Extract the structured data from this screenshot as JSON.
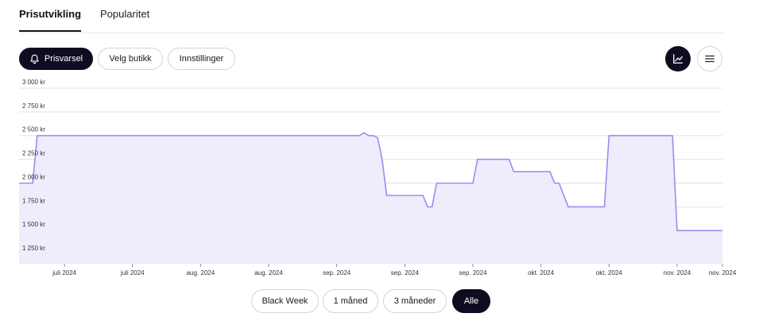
{
  "tabs": [
    {
      "label": "Prisutvikling",
      "active": true
    },
    {
      "label": "Popularitet",
      "active": false
    }
  ],
  "toolbar": {
    "alert_label": "Prisvarsel",
    "alert_icon": "bell-icon",
    "store_label": "Velg butikk",
    "settings_label": "Innstillinger",
    "chart_view_icon": "line-chart-icon",
    "list_view_icon": "menu-icon"
  },
  "colors": {
    "accent_dark": "#0e0c21",
    "line": "#9b8cf0",
    "fill": "#efecfc"
  },
  "range_buttons": [
    {
      "label": "Black Week",
      "active": false
    },
    {
      "label": "1 måned",
      "active": false
    },
    {
      "label": "3 måneder",
      "active": false
    },
    {
      "label": "Alle",
      "active": true
    }
  ],
  "chart_data": {
    "type": "area",
    "title": "",
    "xlabel": "",
    "ylabel": "",
    "ylim": [
      1150,
      3000
    ],
    "yticks": [
      3000,
      2750,
      2500,
      2250,
      2000,
      1750,
      1500,
      1250
    ],
    "ytick_labels": [
      "3 000 kr",
      "2 750 kr",
      "2 500 kr",
      "2 250 kr",
      "2 000 kr",
      "1 750 kr",
      "1 500 kr",
      "1 250 kr"
    ],
    "xlim": [
      "2024-06-15",
      "2024-11-17"
    ],
    "xticks": [
      "2024-06-25",
      "2024-07-10",
      "2024-07-25",
      "2024-08-09",
      "2024-08-24",
      "2024-09-08",
      "2024-09-23",
      "2024-10-08",
      "2024-10-23",
      "2024-11-07",
      "2024-11-17"
    ],
    "xtick_labels": [
      "juli 2024",
      "juli 2024",
      "aug. 2024",
      "aug. 2024",
      "sep. 2024",
      "sep. 2024",
      "sep. 2024",
      "okt. 2024",
      "okt. 2024",
      "nov. 2024",
      "nov. 2024"
    ],
    "grid": true,
    "series": [
      {
        "x": [
          "2024-06-15",
          "2024-06-18",
          "2024-06-19",
          "2024-08-29",
          "2024-08-30",
          "2024-08-31",
          "2024-09-01",
          "2024-09-02",
          "2024-09-03",
          "2024-09-04",
          "2024-09-12",
          "2024-09-13",
          "2024-09-14",
          "2024-09-15",
          "2024-09-16",
          "2024-09-23",
          "2024-09-24",
          "2024-09-25",
          "2024-10-01",
          "2024-10-02",
          "2024-10-10",
          "2024-10-11",
          "2024-10-12",
          "2024-10-14",
          "2024-10-15",
          "2024-10-22",
          "2024-10-23",
          "2024-11-06",
          "2024-11-07",
          "2024-11-17"
        ],
        "values": [
          2000,
          2000,
          2500,
          2500,
          2530,
          2500,
          2500,
          2480,
          2250,
          1870,
          1870,
          1750,
          1750,
          2000,
          2000,
          2000,
          2250,
          2250,
          2250,
          2120,
          2120,
          2000,
          2000,
          1750,
          1750,
          1750,
          2500,
          2500,
          1500,
          1500
        ]
      }
    ]
  }
}
